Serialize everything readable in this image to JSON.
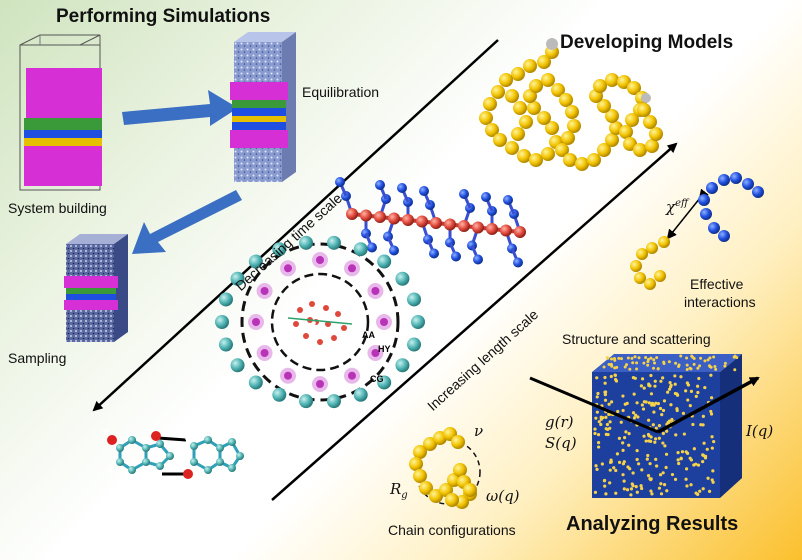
{
  "titles": {
    "performing": "Performing Simulations",
    "developing": "Developing Models",
    "analyzing": "Analyzing Results"
  },
  "captions": {
    "system_building": "System building",
    "equilibration": "Equilibration",
    "sampling": "Sampling",
    "effective_interactions_1": "Effective",
    "effective_interactions_2": "interactions",
    "structure_scattering": "Structure and scattering",
    "chain_configurations": "Chain configurations"
  },
  "axes": {
    "time_scale": "Decreasing time scale",
    "length_scale": "Increasing length scale"
  },
  "symbols": {
    "chi": "χ",
    "chi_sup": "eff",
    "g_r": "g(r)",
    "s_q": "S(q)",
    "i_q": "I(q)",
    "nu": "ν",
    "rg": "R",
    "rg_sub": "g",
    "omega_q": "ω(q)"
  },
  "shell_labels": {
    "aa": "AA",
    "hy": "HY",
    "cg": "CG"
  },
  "colors": {
    "arrow_blue": "#3a6fc4",
    "magenta": "#d62fd6",
    "bead_yellow": "#f2c300",
    "bead_blue": "#1f4fe0",
    "bead_red": "#e0483c",
    "teal": "#4fb3b3",
    "box_blue": "#1d3f9e"
  }
}
